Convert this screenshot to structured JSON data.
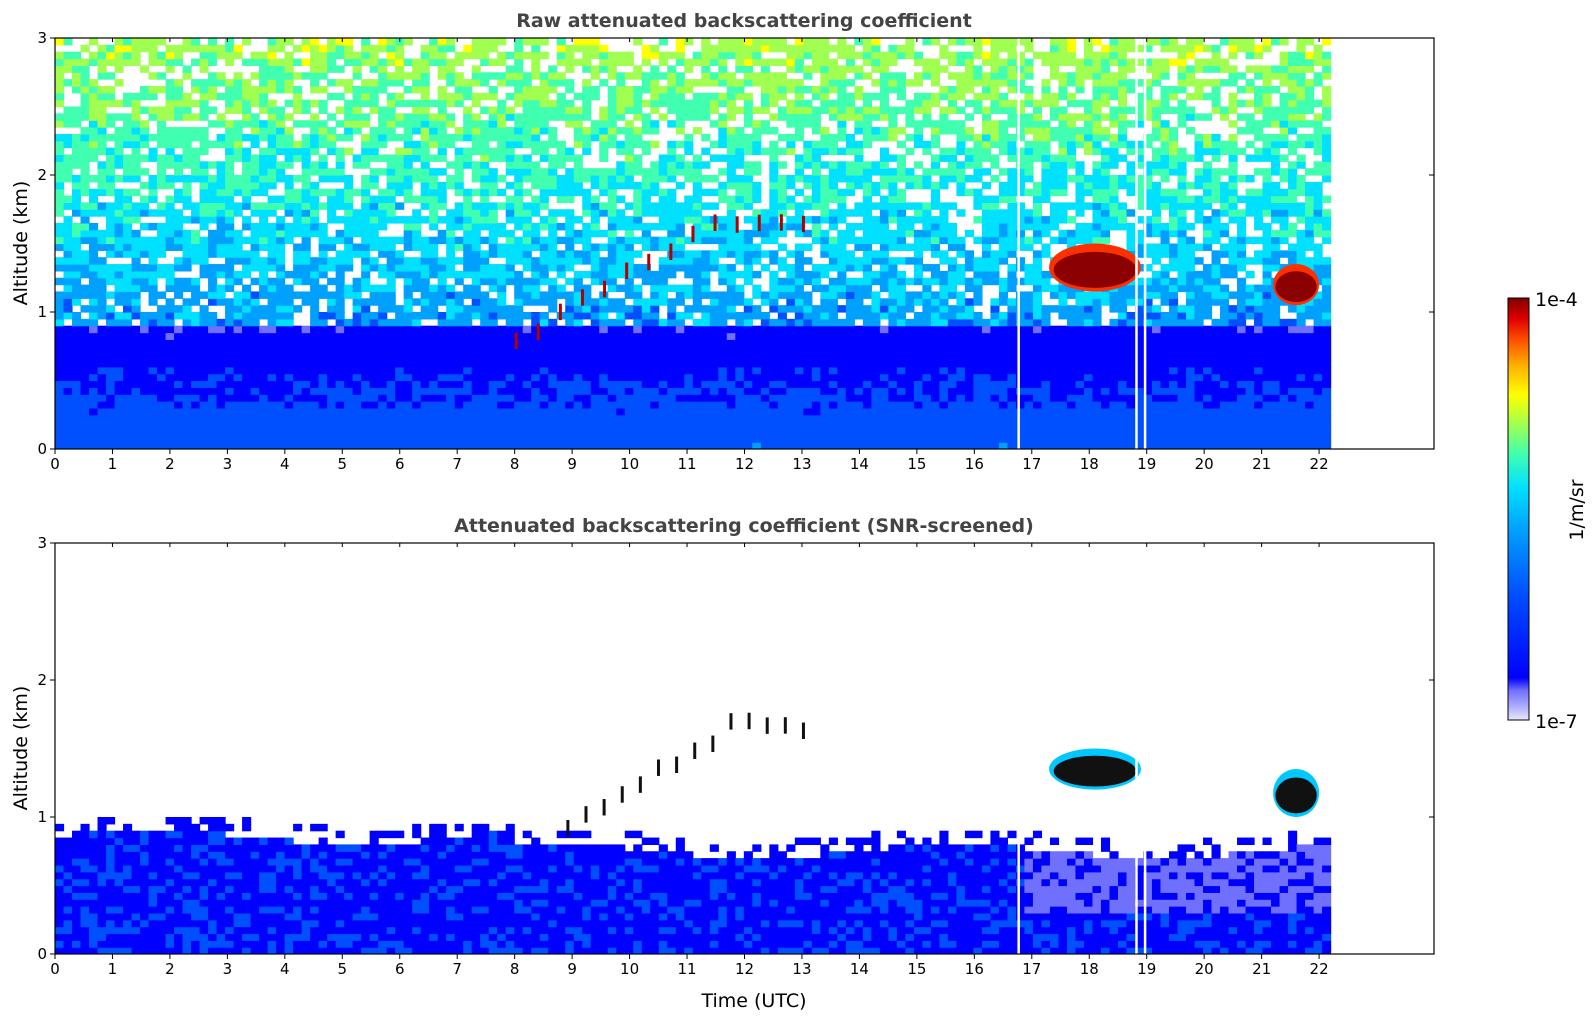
{
  "chart_data": [
    {
      "type": "heatmap",
      "title": "Raw attenuated backscattering coefficient",
      "xlabel": "",
      "ylabel": "Altitude (km)",
      "xlim": [
        0,
        24
      ],
      "ylim": [
        0,
        3
      ],
      "x_ticks": [
        "0",
        "1",
        "2",
        "3",
        "4",
        "5",
        "6",
        "7",
        "8",
        "9",
        "10",
        "11",
        "12",
        "13",
        "14",
        "15",
        "16",
        "17",
        "18",
        "19",
        "20",
        "21",
        "22"
      ],
      "y_ticks": [
        "0",
        "1",
        "2",
        "3"
      ],
      "data_end_hour": 22.2,
      "features": [
        {
          "name": "boundary-layer",
          "x": [
            0,
            22.2
          ],
          "y": [
            0,
            0.9
          ],
          "level": 0.3
        },
        {
          "name": "cloud-a",
          "x": [
            17.3,
            18.9
          ],
          "y": [
            1.15,
            1.5
          ],
          "level": 1.0
        },
        {
          "name": "cloud-b",
          "x": [
            21.2,
            22.0
          ],
          "y": [
            1.05,
            1.35
          ],
          "level": 1.0
        },
        {
          "name": "cloud-fragments",
          "x": [
            8.0,
            13.0
          ],
          "y": [
            0.75,
            1.55
          ],
          "level": 0.9
        },
        {
          "name": "data-gap",
          "x": [
            18.8,
            19.0
          ],
          "y": [
            0,
            3
          ],
          "level": null
        }
      ]
    },
    {
      "type": "heatmap",
      "title": "Attenuated backscattering coefficient (SNR-screened)",
      "xlabel": "Time (UTC)",
      "ylabel": "Altitude (km)",
      "xlim": [
        0,
        24
      ],
      "ylim": [
        0,
        3
      ],
      "x_ticks": [
        "0",
        "1",
        "2",
        "3",
        "4",
        "5",
        "6",
        "7",
        "8",
        "9",
        "10",
        "11",
        "12",
        "13",
        "14",
        "15",
        "16",
        "17",
        "18",
        "19",
        "20",
        "21",
        "22"
      ],
      "y_ticks": [
        "0",
        "1",
        "2",
        "3"
      ],
      "data_end_hour": 22.2,
      "features": [
        {
          "name": "boundary-layer",
          "x": [
            0,
            22.2
          ],
          "y": [
            0,
            0.85
          ],
          "level": 0.3
        },
        {
          "name": "cloud-a",
          "x": [
            17.3,
            18.9
          ],
          "y": [
            1.2,
            1.5
          ],
          "level": 1.0
        },
        {
          "name": "cloud-b",
          "x": [
            21.2,
            22.0
          ],
          "y": [
            1.0,
            1.35
          ],
          "level": 1.0
        },
        {
          "name": "cloud-fragments",
          "x": [
            8.9,
            13.0
          ],
          "y": [
            0.9,
            1.6
          ],
          "level": 0.9
        }
      ]
    }
  ],
  "colorbar": {
    "label": "1/m/sr",
    "max_label": "1e-4",
    "min_label": "1e-7",
    "colors": [
      "#e8e8f8",
      "#b0b0ff",
      "#7070ff",
      "#0000ff",
      "#0050ff",
      "#00a0ff",
      "#00e0ff",
      "#40ffb0",
      "#a0ff50",
      "#ffff00",
      "#ffb000",
      "#ff5000",
      "#e00000",
      "#800000"
    ]
  }
}
